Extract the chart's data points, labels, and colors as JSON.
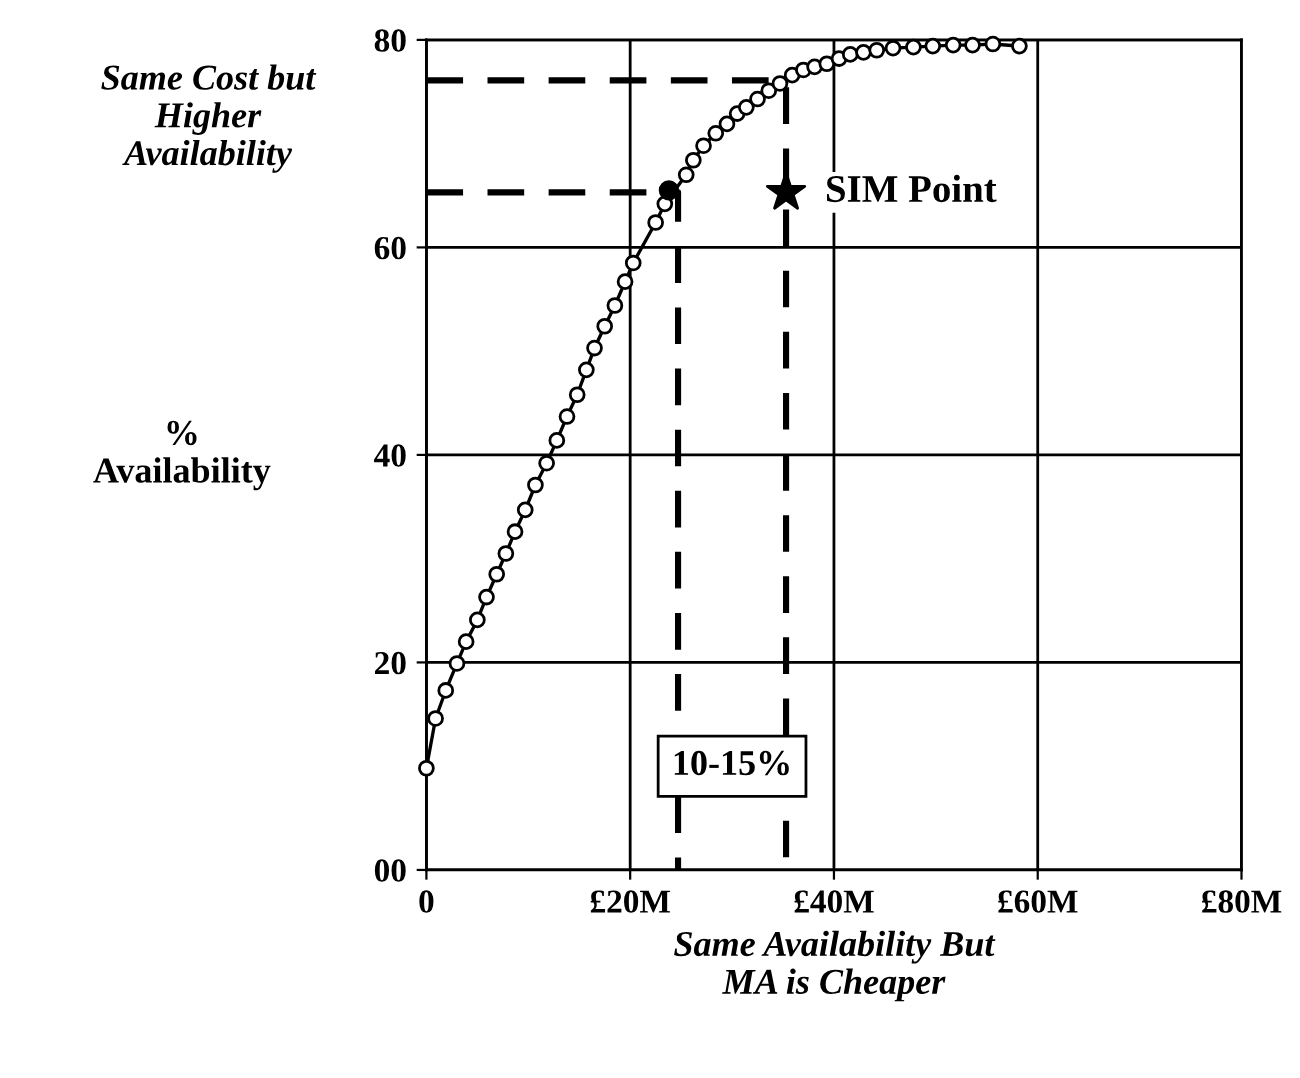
{
  "chart_data": {
    "type": "line",
    "xlabel": "Same Availability But\nMA is Cheaper",
    "ylabel": "%\nAvailability",
    "xlim": [
      0,
      80
    ],
    "ylim": [
      0,
      80
    ],
    "xticks": [
      {
        "value": 0,
        "label": "0"
      },
      {
        "value": 20,
        "label": "£20M"
      },
      {
        "value": 40,
        "label": "£40M"
      },
      {
        "value": 60,
        "label": "£60M"
      },
      {
        "value": 80,
        "label": "£80M"
      }
    ],
    "yticks": [
      {
        "value": 0,
        "label": "00"
      },
      20,
      40,
      60,
      80
    ],
    "grid": true,
    "marker": "circle",
    "line_style": "solid",
    "series": [
      {
        "color": "#000000",
        "x": [
          0,
          0.9,
          1.9,
          3.0,
          3.9,
          5.0,
          5.9,
          6.9,
          7.8,
          8.7,
          9.7,
          10.7,
          11.8,
          12.8,
          13.8,
          14.8,
          15.7,
          16.5,
          17.5,
          18.5,
          19.5,
          20.3,
          22.5,
          23.4,
          25.5,
          26.2,
          27.2,
          28.4,
          29.5,
          30.5,
          31.4,
          32.5,
          33.6,
          34.7,
          35.9,
          37.0,
          38.1,
          39.3,
          40.5,
          41.6,
          42.9,
          44.2,
          45.8,
          47.8,
          49.7,
          51.7,
          53.6,
          55.6,
          58.2
        ],
        "values": [
          9.8,
          14.6,
          17.3,
          19.9,
          22.0,
          24.1,
          26.3,
          28.5,
          30.5,
          32.6,
          34.7,
          37.1,
          39.2,
          41.4,
          43.7,
          45.8,
          48.2,
          50.3,
          52.4,
          54.4,
          56.7,
          58.5,
          62.4,
          64.2,
          67.0,
          68.4,
          69.8,
          71.0,
          71.9,
          72.9,
          73.5,
          74.3,
          75.1,
          75.8,
          76.6,
          77.1,
          77.4,
          77.7,
          78.2,
          78.6,
          78.8,
          79.0,
          79.2,
          79.3,
          79.4,
          79.5,
          79.5,
          79.6,
          79.4
        ]
      },
      {
        "type": "scatter",
        "color": "#000000",
        "marker": "circle",
        "x": [
          23.8
        ],
        "values": [
          65.5
        ]
      },
      {
        "type": "scatter",
        "color": "#000000",
        "marker": "star",
        "x": [
          35.3
        ],
        "values": [
          65.3
        ]
      },
      {
        "type": "line",
        "color": "#000000",
        "marker": "none",
        "line_style": "dashed",
        "x": [
          0,
          24.7,
          24.7
        ],
        "values": [
          65.3,
          65.3,
          0
        ]
      },
      {
        "type": "line",
        "color": "#000000",
        "marker": "none",
        "line_style": "dashed",
        "x": [
          0,
          35.3,
          35.3
        ],
        "values": [
          76.1,
          76.1,
          0
        ]
      }
    ],
    "annotations": [
      {
        "text": "SIM Point",
        "x": 35.3,
        "y": 65.3
      },
      "Same Cost but\nHigher\nAvailability",
      "10-15%"
    ]
  }
}
